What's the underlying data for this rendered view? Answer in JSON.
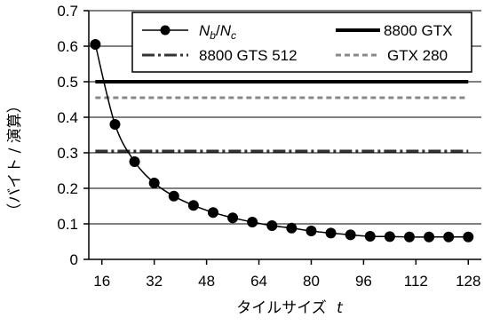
{
  "chart_data": {
    "type": "line",
    "xlabel": "タイルサイズ",
    "xlabel_var": "t",
    "ylabel": "（バイト / 演算）",
    "x_ticks": [
      16,
      32,
      48,
      64,
      80,
      96,
      112,
      128
    ],
    "y_ticks": [
      0,
      0.1,
      0.2,
      0.3,
      0.4,
      0.5,
      0.6,
      0.7
    ],
    "y_tick_labels": [
      "0",
      "0.1",
      "0.2",
      "0.3",
      "0.4",
      "0.5",
      "0.6",
      "0.7"
    ],
    "xlim": [
      12,
      132
    ],
    "ylim": [
      0,
      0.7
    ],
    "grid": "horizontal",
    "legend_position": "top",
    "series": [
      {
        "name_parts": {
          "main1": "N",
          "sub1": "b",
          "slash": "/",
          "main2": "N",
          "sub2": "c"
        },
        "style": "line-with-markers",
        "color": "#000000",
        "x": [
          14,
          20,
          26,
          32,
          38,
          44,
          50,
          56,
          62,
          68,
          74,
          80,
          86,
          92,
          98,
          104,
          110,
          116,
          122,
          128
        ],
        "y": [
          0.605,
          0.38,
          0.275,
          0.215,
          0.178,
          0.152,
          0.132,
          0.117,
          0.105,
          0.095,
          0.088,
          0.08,
          0.074,
          0.069,
          0.065,
          0.064,
          0.063,
          0.063,
          0.063,
          0.063
        ]
      },
      {
        "name": "8800 GTX",
        "style": "solid-thick",
        "color": "#000000",
        "value": 0.5
      },
      {
        "name": "8800 GTS 512",
        "style": "dash-dot",
        "color": "#333333",
        "value": 0.305
      },
      {
        "name": "GTX 280",
        "style": "dashed",
        "color": "#888888",
        "value": 0.455
      }
    ]
  }
}
